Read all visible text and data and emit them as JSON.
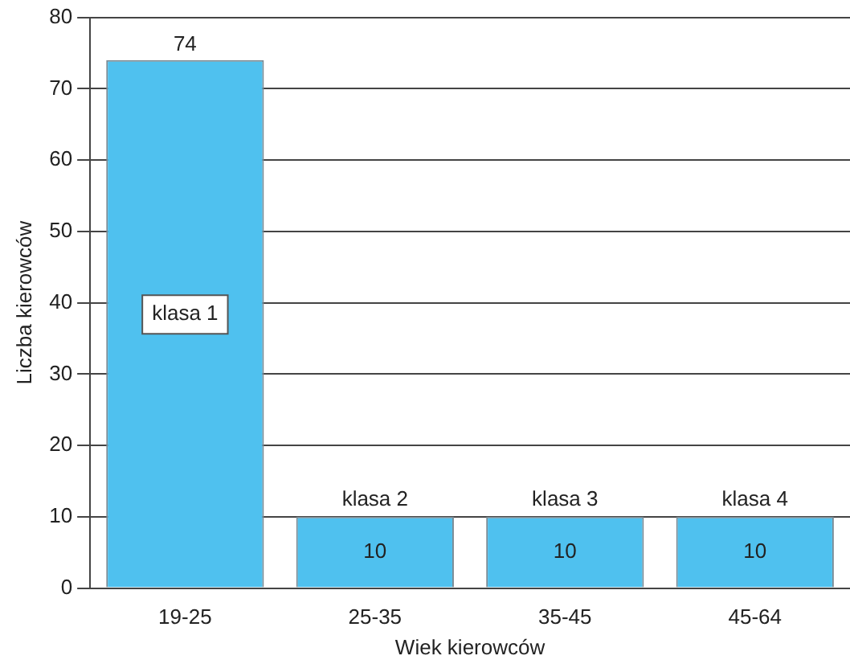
{
  "chart_data": {
    "type": "bar",
    "xlabel": "Wiek kierowców",
    "ylabel": "Liczba kierowców",
    "categories": [
      "19-25",
      "25-35",
      "35-45",
      "45-64"
    ],
    "values": [
      74,
      10,
      10,
      10
    ],
    "color": "#4fc1ef",
    "ylim": [
      0,
      80
    ],
    "yticks": [
      0,
      10,
      20,
      30,
      40,
      50,
      60,
      70,
      80
    ],
    "grid": "y",
    "data_labels": true,
    "annotations": [
      "klasa 1",
      {
        "text": "klasa 2",
        "x": "25-35",
        "y": 10
      },
      {
        "text": "klasa 3",
        "x": "35-45",
        "y": 10
      },
      {
        "text": "klasa 4",
        "x": "45-64",
        "y": 10
      }
    ]
  }
}
